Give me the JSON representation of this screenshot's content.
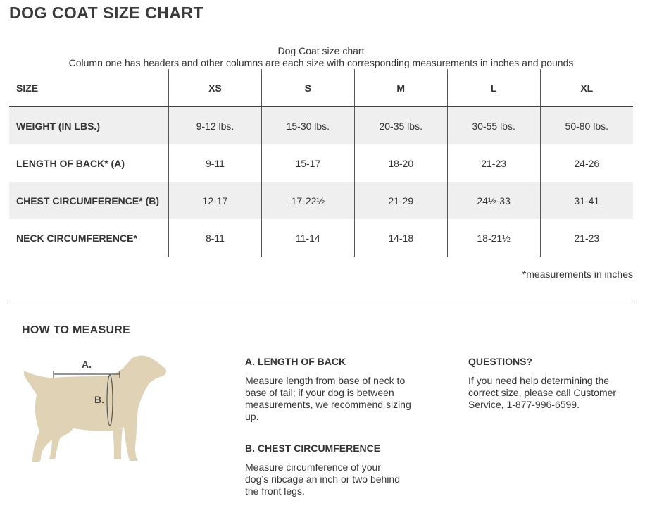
{
  "page_title": "DOG COAT SIZE CHART",
  "table": {
    "caption_title": "Dog Coat size chart",
    "caption_desc": "Column one has headers and other columns are each size with corresponding measurements in inches and pounds",
    "headers": [
      "SIZE",
      "XS",
      "S",
      "M",
      "L",
      "XL"
    ],
    "rows": [
      [
        "WEIGHT (IN LBS.)",
        "9-12 lbs.",
        "15-30 lbs.",
        "20-35 lbs.",
        "30-55 lbs.",
        "50-80 lbs."
      ],
      [
        "LENGTH OF BACK* (A)",
        "9-11",
        "15-17",
        "18-20",
        "21-23",
        "24-26"
      ],
      [
        "CHEST CIRCUMFERENCE* (B)",
        "12-17",
        "17-22½",
        "21-29",
        "24½-33",
        "31-41"
      ],
      [
        "NECK CIRCUMFERENCE*",
        "8-11",
        "11-14",
        "14-18",
        "18-21½",
        "21-23"
      ]
    ],
    "footnote": "*measurements in inches"
  },
  "how_to_measure": {
    "title": "HOW TO MEASURE",
    "diagram": {
      "label_a": "A.",
      "label_b": "B.",
      "fill_color": "#e0d3b5",
      "line_color": "#555555"
    },
    "length_heading": "A. LENGTH OF BACK",
    "length_text": "Measure length from base of neck to base of tail; if your dog is between measurements, we recommend sizing up.",
    "chest_heading": "B. CHEST CIRCUMFERENCE",
    "chest_text": "Measure circumference of your dog’s ribcage an inch or two behind the front legs.",
    "questions_heading": "QUESTIONS?",
    "questions_text": "If you need help determining the correct size, please call Customer Service, 1-877-996-6599."
  }
}
